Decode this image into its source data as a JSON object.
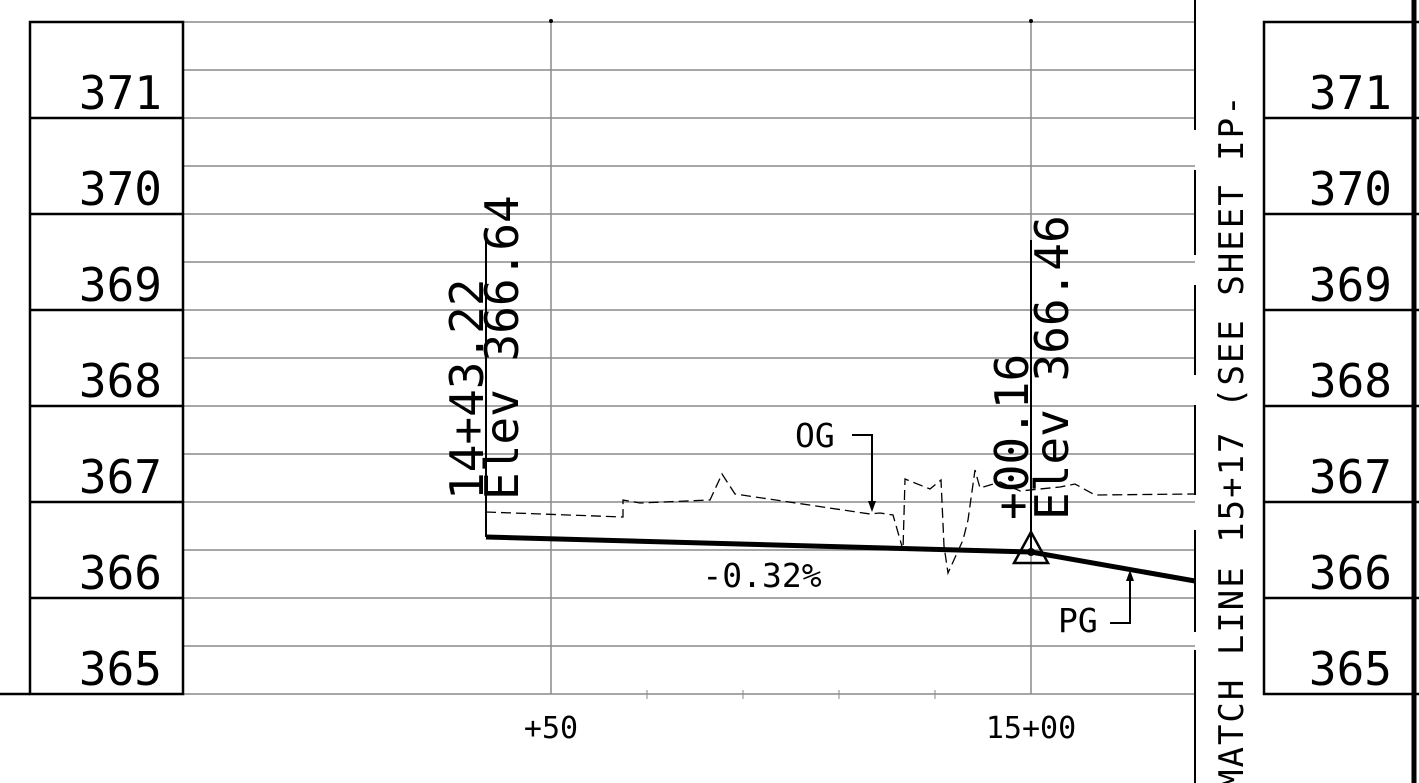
{
  "elevations_left": [
    "371",
    "370",
    "369",
    "368",
    "367",
    "366",
    "365"
  ],
  "elevations_right": [
    "371",
    "370",
    "369",
    "368",
    "367",
    "366",
    "365"
  ],
  "stations": [
    "+50",
    "15+00"
  ],
  "pvi_labels": {
    "left_station": "14+43.22",
    "left_elev": "Elev 366.64",
    "right_station": "+00.16",
    "right_elev": "Elev 366.46"
  },
  "grade_label": "-0.32%",
  "og_label": "OG",
  "pg_label": "PG",
  "match_line": "MATCH LINE 15+17 (SEE SHEET IP-",
  "colors": {
    "ink": "#000000",
    "grid": "#8a8a8a",
    "paper": "#ffffff"
  }
}
